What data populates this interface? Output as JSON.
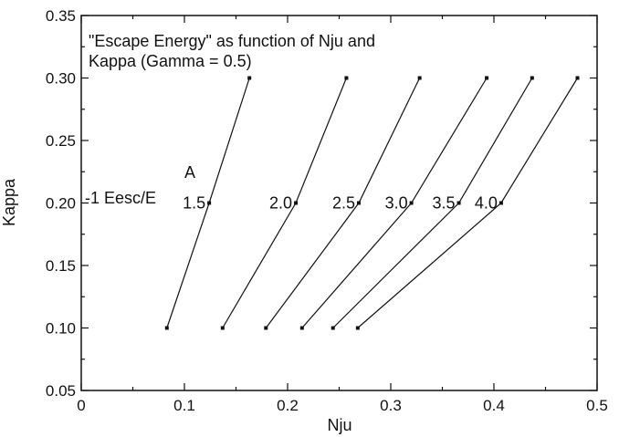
{
  "chart_data": {
    "type": "line",
    "title": "",
    "annotation_lines": [
      "\"Escape Energy\" as function of Nju and",
      "Kappa (Gamma = 0.5)"
    ],
    "marker_text": "A",
    "ylabel_prefix": "-1 Eesc/E",
    "xlabel": "Nju",
    "ylabel": "Kappa",
    "xlim": [
      0,
      0.5
    ],
    "ylim": [
      0.05,
      0.35
    ],
    "xticks": [
      0,
      0.1,
      0.2,
      0.3,
      0.4,
      0.5
    ],
    "xtick_labels": [
      "0",
      "0.1",
      "0.2",
      "0.3",
      "0.4",
      "0.5"
    ],
    "yticks": [
      0.05,
      0.1,
      0.15,
      0.2,
      0.25,
      0.3,
      0.35
    ],
    "ytick_labels": [
      "0.05",
      "0.10",
      "0.15",
      "0.20",
      "0.25",
      "0.30",
      "0.35"
    ],
    "grid": false,
    "series": [
      {
        "name": "1.5",
        "x": [
          0.083,
          0.124,
          0.163
        ],
        "y": [
          0.1,
          0.2,
          0.3
        ]
      },
      {
        "name": "2.0",
        "x": [
          0.137,
          0.208,
          0.257
        ],
        "y": [
          0.1,
          0.2,
          0.3
        ]
      },
      {
        "name": "2.5",
        "x": [
          0.179,
          0.269,
          0.328
        ],
        "y": [
          0.1,
          0.2,
          0.3
        ]
      },
      {
        "name": "3.0",
        "x": [
          0.214,
          0.32,
          0.393
        ],
        "y": [
          0.1,
          0.2,
          0.3
        ]
      },
      {
        "name": "3.5",
        "x": [
          0.244,
          0.366,
          0.437
        ],
        "y": [
          0.1,
          0.2,
          0.3
        ]
      },
      {
        "name": "4.0",
        "x": [
          0.268,
          0.407,
          0.481
        ],
        "y": [
          0.1,
          0.2,
          0.3
        ]
      }
    ]
  }
}
